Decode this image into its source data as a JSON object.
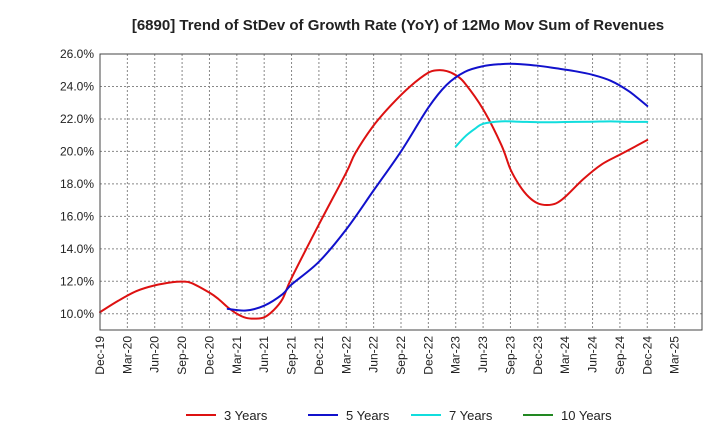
{
  "chart_data": {
    "type": "line",
    "title": "[6890]  Trend of StDev of Growth Rate (YoY) of 12Mo Mov Sum of Revenues",
    "xlabel": "",
    "ylabel": "",
    "ylim": [
      9.0,
      26.0
    ],
    "xlim": [
      0,
      22
    ],
    "y_ticks": [
      10.0,
      12.0,
      14.0,
      16.0,
      18.0,
      20.0,
      22.0,
      24.0,
      26.0
    ],
    "y_tick_labels": [
      "10.0%",
      "12.0%",
      "14.0%",
      "16.0%",
      "18.0%",
      "20.0%",
      "22.0%",
      "24.0%",
      "26.0%"
    ],
    "x_tick_labels": [
      "Dec-19",
      "Mar-20",
      "Jun-20",
      "Sep-20",
      "Dec-20",
      "Mar-21",
      "Jun-21",
      "Sep-21",
      "Dec-21",
      "Mar-22",
      "Jun-22",
      "Sep-22",
      "Dec-22",
      "Mar-23",
      "Jun-23",
      "Sep-23",
      "Dec-23",
      "Mar-24",
      "Jun-24",
      "Sep-24",
      "Dec-24",
      "Mar-25"
    ],
    "grid": true,
    "legend_position": "bottom",
    "series": [
      {
        "name": "3 Years",
        "color": "#dd1111",
        "x": [
          0,
          0.667,
          1.333,
          2,
          2.667,
          3,
          3.333,
          4,
          4.333,
          4.667,
          5,
          5.333,
          5.667,
          6,
          6.333,
          6.667,
          7,
          8,
          9,
          9.333,
          10,
          10.667,
          11.333,
          12,
          12.333,
          12.667,
          13,
          13.333,
          14,
          14.667,
          15,
          15.333,
          15.667,
          16,
          16.333,
          16.667,
          17,
          17.667,
          18.333,
          19,
          19.667,
          20
        ],
        "values": [
          10.1,
          10.8,
          11.4,
          11.75,
          11.95,
          11.98,
          11.9,
          11.3,
          10.9,
          10.4,
          10.0,
          9.75,
          9.7,
          9.78,
          10.2,
          10.9,
          12.2,
          15.5,
          18.7,
          19.9,
          21.6,
          22.9,
          24.0,
          24.85,
          25.0,
          24.95,
          24.7,
          24.2,
          22.6,
          20.4,
          18.9,
          17.9,
          17.2,
          16.8,
          16.7,
          16.8,
          17.2,
          18.3,
          19.2,
          19.8,
          20.4,
          20.7
        ]
      },
      {
        "name": "5 Years",
        "color": "#1111cc",
        "x": [
          4.667,
          5.333,
          6,
          6.667,
          7,
          8,
          9,
          10,
          11,
          12,
          12.667,
          13.333,
          14,
          14.667,
          15,
          15.333,
          16,
          16.667,
          17.333,
          18,
          18.667,
          19.333,
          20
        ],
        "values": [
          10.3,
          10.2,
          10.5,
          11.2,
          11.8,
          13.2,
          15.2,
          17.6,
          20.0,
          22.7,
          24.1,
          24.9,
          25.25,
          25.38,
          25.4,
          25.38,
          25.28,
          25.12,
          24.95,
          24.72,
          24.35,
          23.7,
          22.8
        ]
      },
      {
        "name": "7 Years",
        "color": "#11dddd",
        "x": [
          13,
          13.333,
          13.667,
          14,
          14.667,
          15.333,
          16,
          16.667,
          17.333,
          18,
          18.667,
          19.333,
          20
        ],
        "values": [
          20.3,
          20.9,
          21.35,
          21.7,
          21.85,
          21.83,
          21.8,
          21.8,
          21.82,
          21.83,
          21.85,
          21.82,
          21.82
        ]
      },
      {
        "name": "10 Years",
        "color": "#228822",
        "x": [],
        "values": []
      }
    ]
  }
}
